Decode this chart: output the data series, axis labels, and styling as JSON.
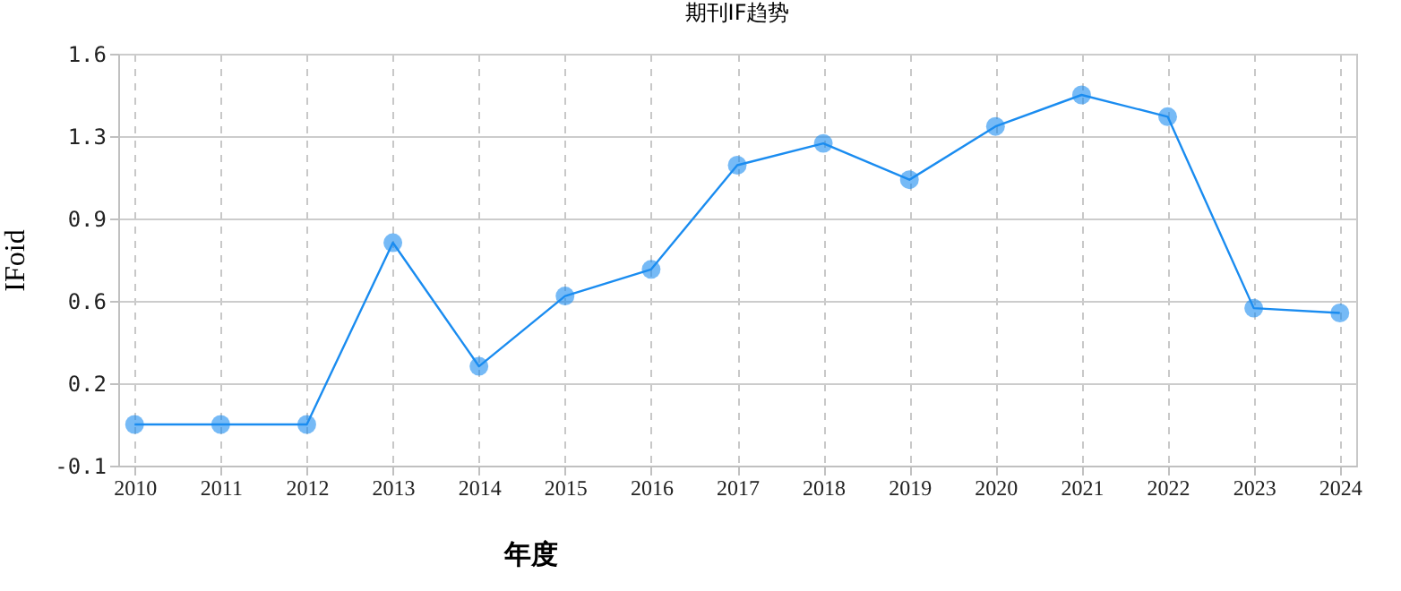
{
  "chart_data": {
    "type": "line",
    "title": "期刊IF趋势",
    "xlabel": "年度",
    "ylabel": "IFoid",
    "categories": [
      "2010",
      "2011",
      "2012",
      "2013",
      "2014",
      "2015",
      "2016",
      "2017",
      "2018",
      "2019",
      "2020",
      "2021",
      "2022",
      "2023",
      "2024"
    ],
    "series": [
      {
        "color": "#1a8cf0",
        "values": [
          0.07,
          0.07,
          0.07,
          0.82,
          0.31,
          0.6,
          0.71,
          1.14,
          1.23,
          1.08,
          1.3,
          1.43,
          1.34,
          0.55,
          0.53
        ]
      }
    ],
    "ylim": [
      -0.1,
      1.6
    ],
    "yticks": [
      -0.1,
      {
        "value": 0.24,
        "label": "0.2"
      },
      {
        "value": 0.58,
        "label": "0.6"
      },
      {
        "value": 0.92,
        "label": "0.9"
      },
      {
        "value": 1.26,
        "label": "1.3"
      },
      1.6
    ],
    "grid": true,
    "marker": "circle",
    "line_style": "solid"
  }
}
